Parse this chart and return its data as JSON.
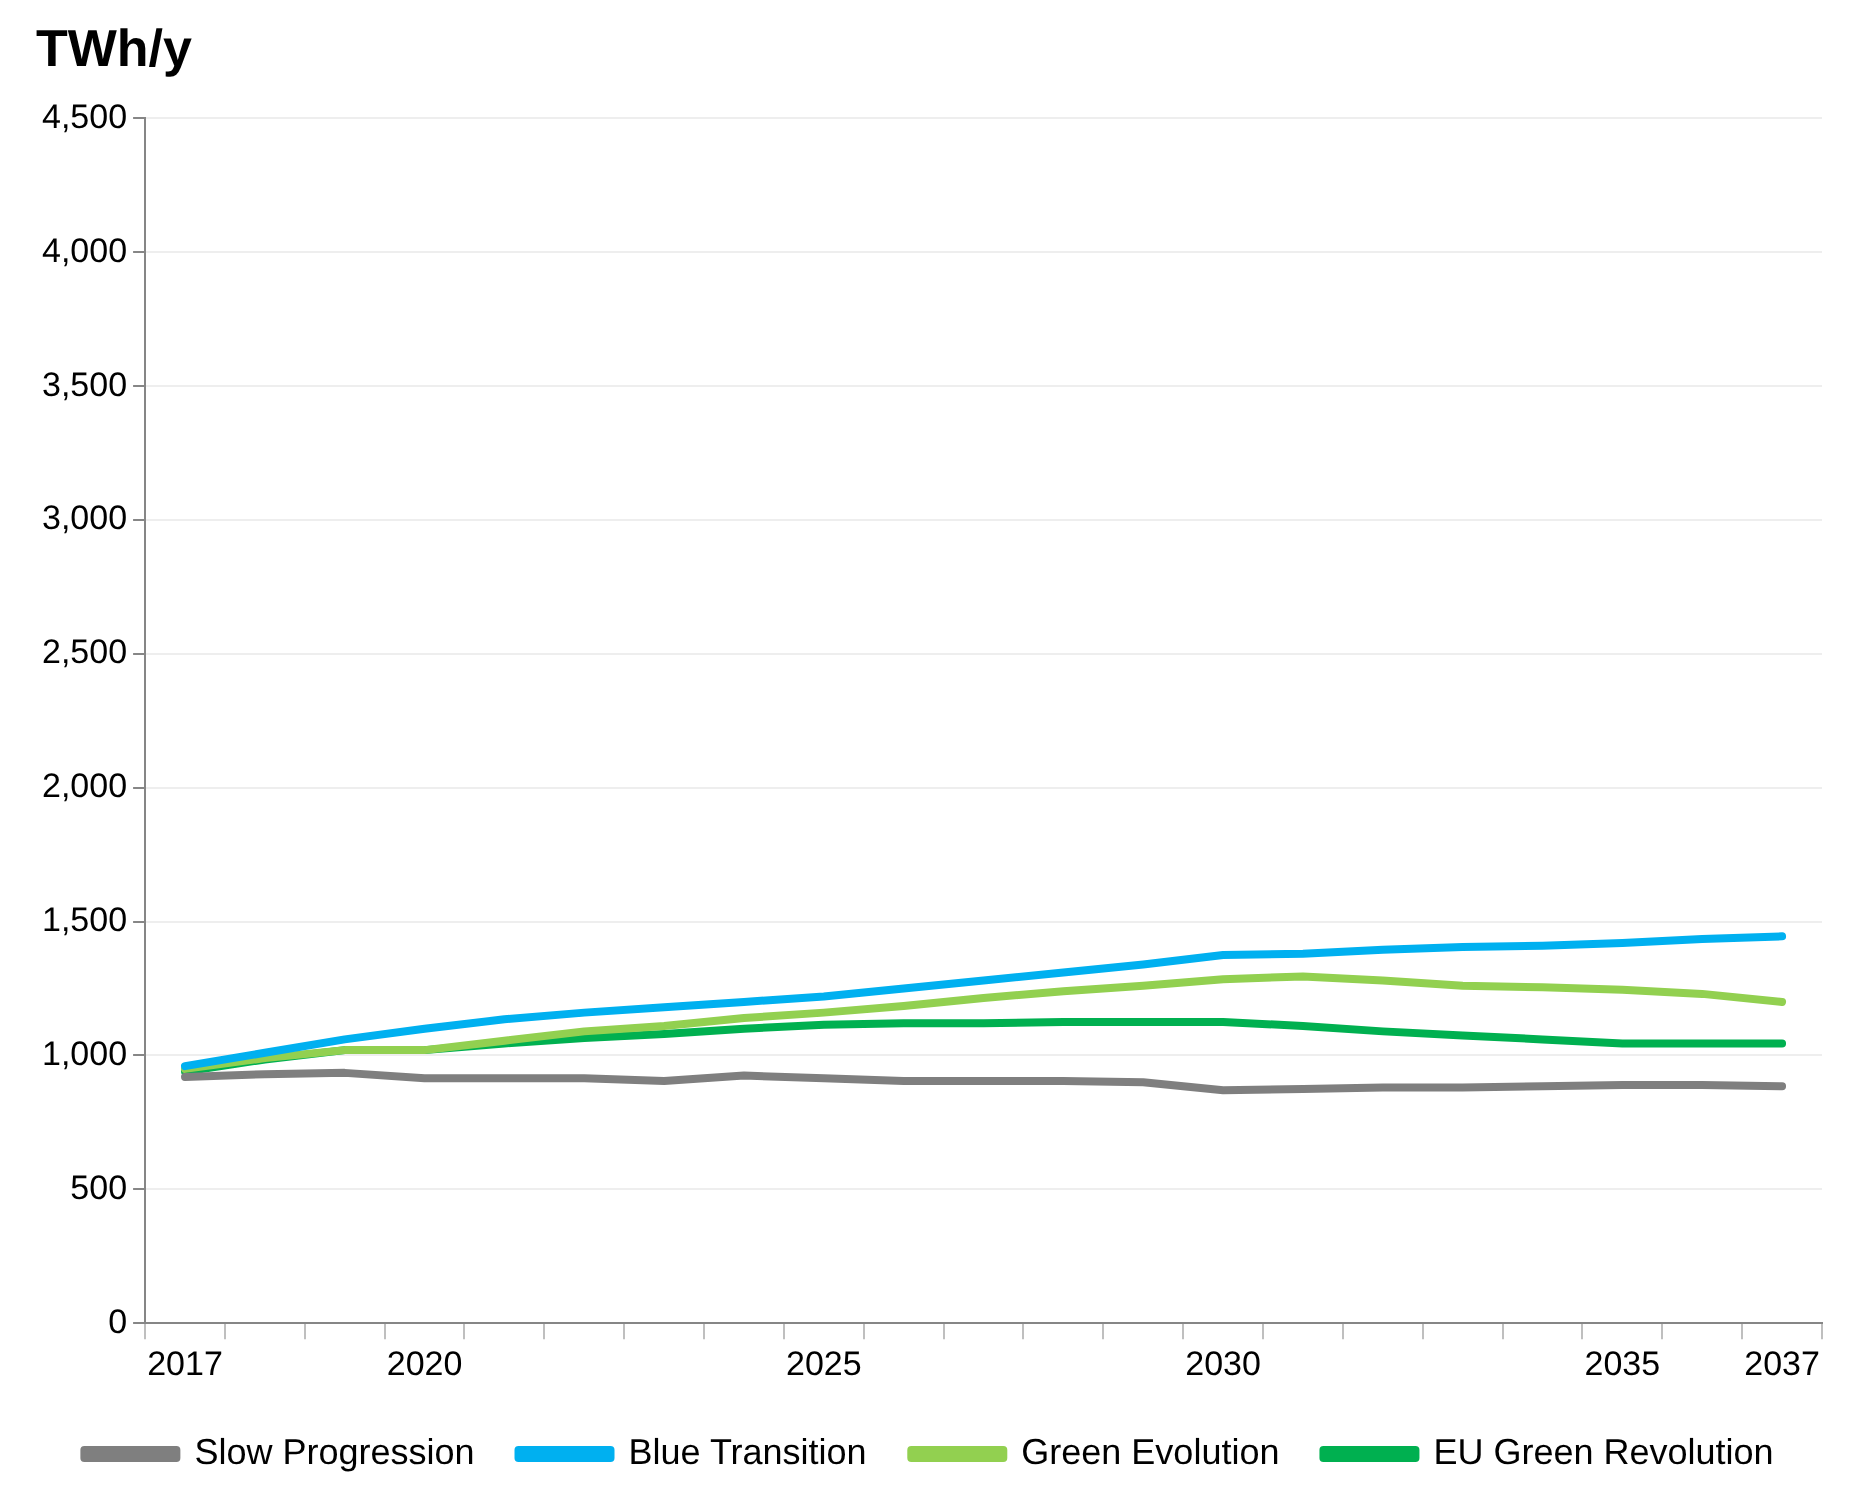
{
  "chart_data": {
    "type": "line",
    "title": "TWh/y",
    "categories": [
      "2017",
      null,
      null,
      "2020",
      null,
      null,
      null,
      null,
      "2025",
      null,
      null,
      null,
      null,
      "2030",
      null,
      null,
      null,
      null,
      "2035",
      null,
      "2037"
    ],
    "series": [
      {
        "name": "Slow Progression",
        "color": "#7f7f7f",
        "values": [
          920,
          930,
          935,
          915,
          915,
          915,
          905,
          925,
          915,
          905,
          905,
          905,
          900,
          870,
          875,
          880,
          880,
          885,
          890,
          890,
          885
        ]
      },
      {
        "name": "Blue Transition",
        "color": "#00b0f0",
        "values": [
          960,
          1010,
          1060,
          1100,
          1135,
          1160,
          1180,
          1200,
          1220,
          1250,
          1280,
          1310,
          1340,
          1375,
          1380,
          1395,
          1405,
          1410,
          1420,
          1435,
          1445
        ]
      },
      {
        "name": "Green Evolution",
        "color": "#92d050",
        "values": [
          950,
          990,
          1020,
          1020,
          1055,
          1090,
          1110,
          1140,
          1160,
          1185,
          1215,
          1240,
          1260,
          1285,
          1295,
          1280,
          1260,
          1255,
          1245,
          1230,
          1200
        ]
      },
      {
        "name": "EU Green Revolution",
        "color": "#00b050",
        "values": [
          940,
          985,
          1020,
          1020,
          1045,
          1065,
          1080,
          1100,
          1115,
          1120,
          1120,
          1125,
          1125,
          1125,
          1110,
          1090,
          1075,
          1060,
          1045,
          1045,
          1045
        ]
      }
    ],
    "ylim": [
      0,
      4500
    ],
    "yticks": [
      0,
      500,
      {
        "value": 1000,
        "label": "1,000"
      },
      {
        "value": 1500,
        "label": "1,500"
      },
      {
        "value": 2000,
        "label": "2,000"
      },
      {
        "value": 2500,
        "label": "2,500"
      },
      {
        "value": 3000,
        "label": "3,000"
      },
      {
        "value": 3500,
        "label": "3,500"
      },
      {
        "value": 4000,
        "label": "4,000"
      },
      {
        "value": 4500,
        "label": "4,500"
      }
    ],
    "grid": "y",
    "legend": "bottom",
    "marker": "none",
    "line_style": "solid"
  }
}
